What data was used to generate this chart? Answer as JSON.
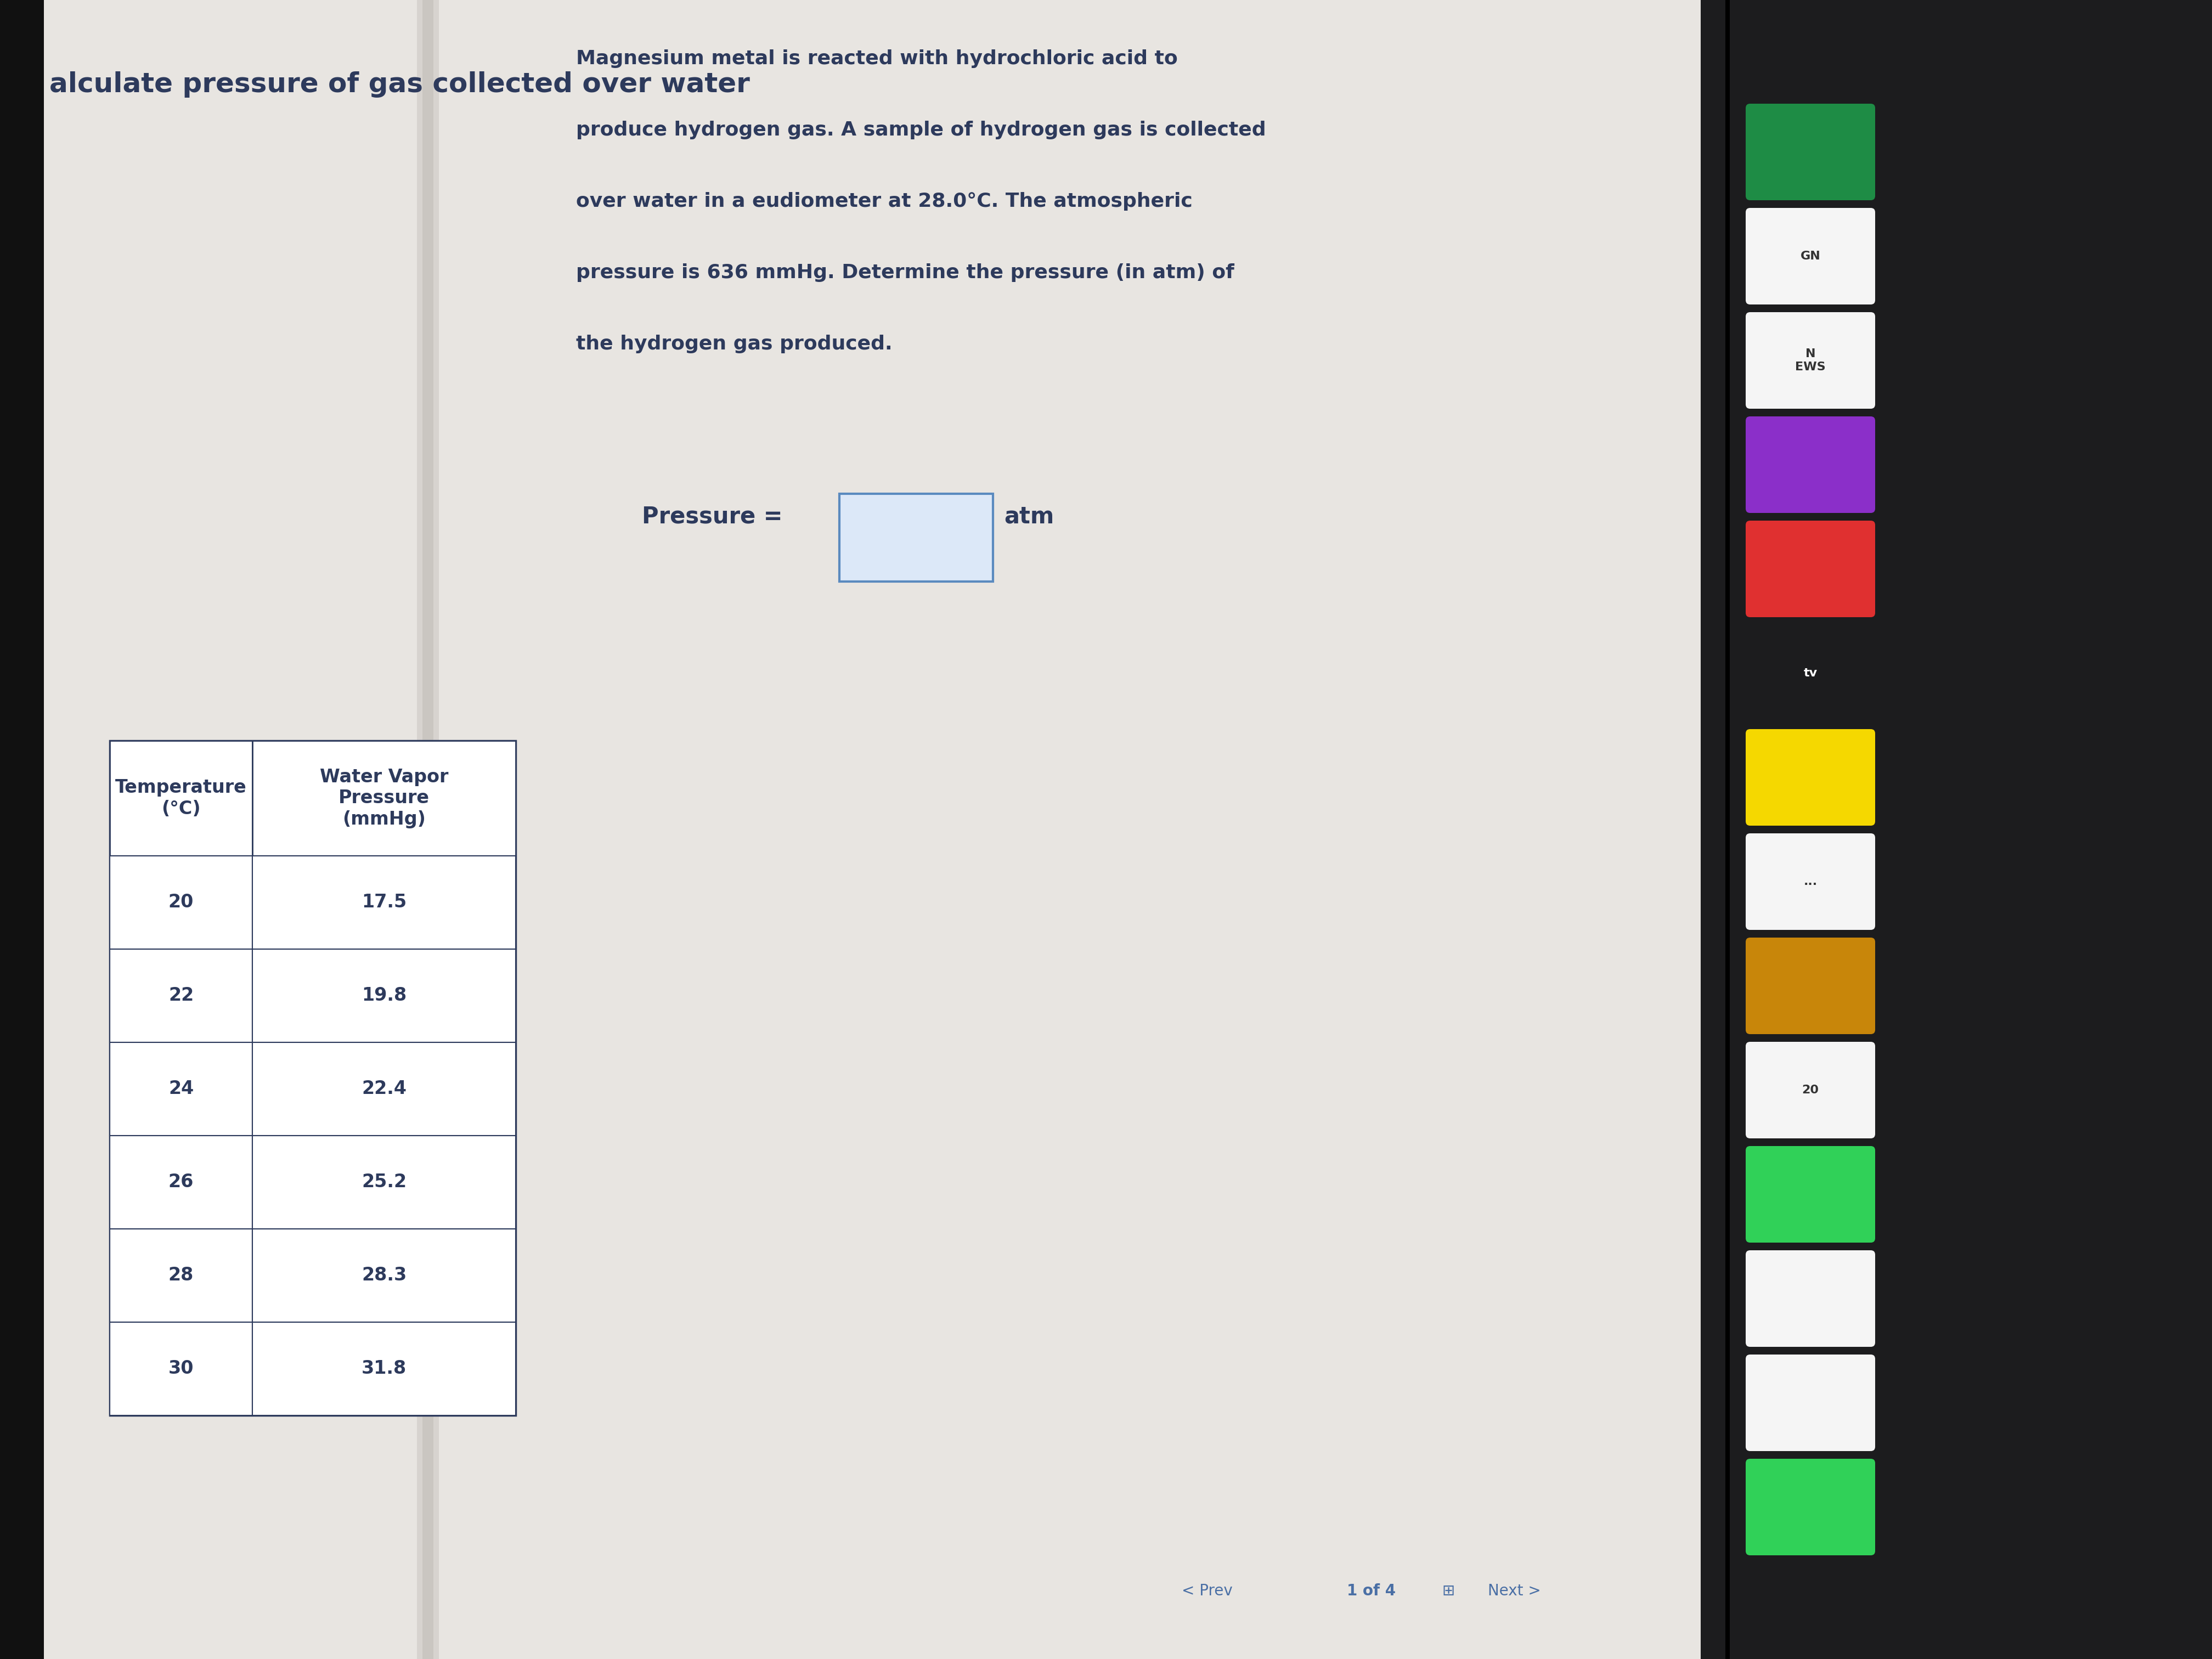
{
  "page_title": "alculate pressure of gas collected over water",
  "problem_text_lines": [
    "Magnesium metal is reacted with hydrochloric acid to",
    "produce hydrogen gas. A sample of hydrogen gas is collected",
    "over water in a eudiometer at 28.0°C. The atmospheric",
    "pressure is 636 mmHg. Determine the pressure (in atm) of",
    "the hydrogen gas produced."
  ],
  "answer_label": "Pressure =",
  "answer_unit": "atm",
  "table_col1_header": "Temperature\n(°C)",
  "table_col2_header": "Water Vapor\nPressure\n(mmHg)",
  "table_data": [
    [
      "20",
      "17.5"
    ],
    [
      "22",
      "19.8"
    ],
    [
      "24",
      "22.4"
    ],
    [
      "26",
      "25.2"
    ],
    [
      "28",
      "28.3"
    ],
    [
      "30",
      "31.8"
    ]
  ],
  "nav_prev": "< Prev",
  "nav_page": "1 of 4",
  "nav_next": "Next >",
  "bg_color": "#1a1a1a",
  "screen_bg": "#e8e5e0",
  "content_bg": "#e8e5e0",
  "text_color": "#2d3a5c",
  "table_border_color": "#2d3a5c",
  "answer_box_facecolor": "#dce8f8",
  "answer_box_edgecolor": "#5a8abf",
  "dock_bg": "#2a2a3a",
  "title_fontsize": 36,
  "body_fontsize": 26,
  "table_fontsize": 24,
  "nav_fontsize": 20
}
